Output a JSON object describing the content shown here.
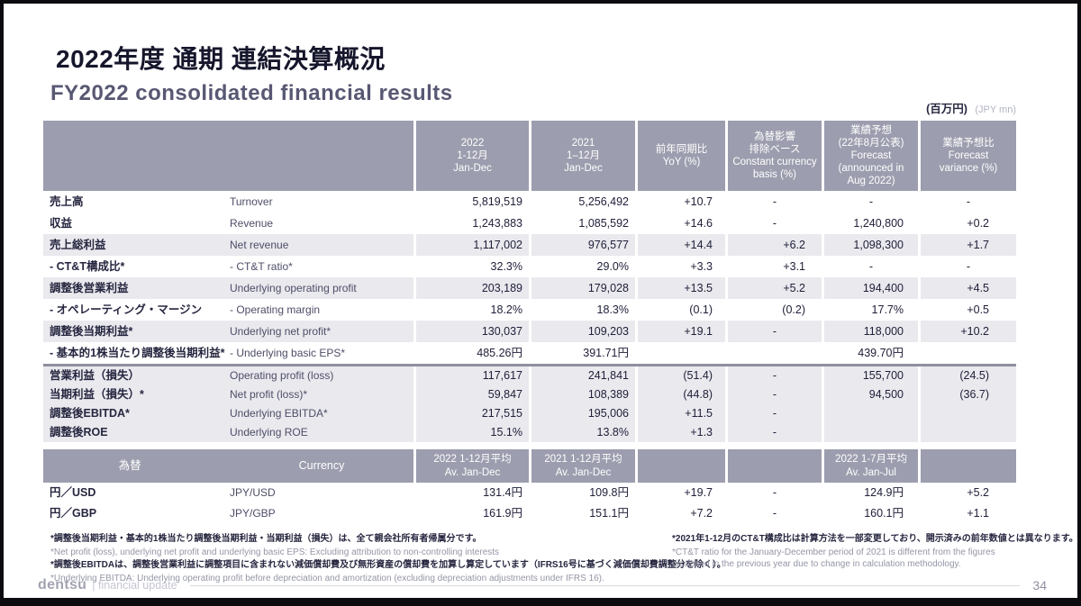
{
  "slide": {
    "title_jp": "2022年度 通期 連結決算概況",
    "title_en": "FY2022 consolidated financial results",
    "unit_jp": "(百万円)",
    "unit_en": "(JPY mn)",
    "accent_colors": {
      "header_bg": "#9c9dae",
      "shaded_row_bg": "#e9e9ee",
      "title_jp_color": "#16162c",
      "title_en_color": "#585874"
    }
  },
  "table": {
    "header": {
      "c2022": [
        "2022",
        "1-12月",
        "Jan-Dec"
      ],
      "c2021": [
        "2021",
        "1–12月",
        "Jan-Dec"
      ],
      "cyoy": [
        "前年同期比",
        "YoY (%)"
      ],
      "ccc": [
        "為替影響",
        "排除ベース",
        "Constant currency",
        "basis (%)"
      ],
      "cfc": [
        "業績予想",
        "(22年8月公表)",
        "Forecast",
        "(announced in",
        "Aug 2022)"
      ],
      "cvar": [
        "業績予想比",
        "Forecast",
        "variance (%)"
      ]
    },
    "rows": [
      {
        "jp": "売上高",
        "en": "Turnover",
        "y2022": "5,819,519",
        "y2021": "5,256,492",
        "yoy": "+10.7",
        "cc": "-",
        "fc": "-",
        "var": "-"
      },
      {
        "jp": "収益",
        "en": "Revenue",
        "y2022": "1,243,883",
        "y2021": "1,085,592",
        "yoy": "+14.6",
        "cc": "-",
        "fc": "1,240,800",
        "var": "+0.2"
      },
      {
        "jp": "売上総利益",
        "en": "Net revenue",
        "y2022": "1,117,002",
        "y2021": "976,577",
        "yoy": "+14.4",
        "cc": "+6.2",
        "fc": "1,098,300",
        "var": "+1.7"
      },
      {
        "jp": "- CT&T構成比*",
        "en": "- CT&T ratio*",
        "y2022": "32.3%",
        "y2021": "29.0%",
        "yoy": "+3.3",
        "cc": "+3.1",
        "fc": "-",
        "var": "-"
      },
      {
        "jp": "調整後営業利益",
        "en": "Underlying operating profit",
        "y2022": "203,189",
        "y2021": "179,028",
        "yoy": "+13.5",
        "cc": "+5.2",
        "fc": "194,400",
        "var": "+4.5"
      },
      {
        "jp": "- オペレーティング・マージン",
        "en": "- Operating margin",
        "y2022": "18.2%",
        "y2021": "18.3%",
        "yoy": "(0.1)",
        "cc": "(0.2)",
        "fc": "17.7%",
        "var": "+0.5"
      },
      {
        "jp": "調整後当期利益*",
        "en": "Underlying net profit*",
        "y2022": "130,037",
        "y2021": "109,203",
        "yoy": "+19.1",
        "cc": "-",
        "fc": "118,000",
        "var": "+10.2"
      },
      {
        "jp": "- 基本的1株当たり調整後当期利益*",
        "en": "- Underlying basic EPS*",
        "y2022": "485.26円",
        "y2021": "391.71円",
        "yoy": "",
        "cc": "",
        "fc": "439.70円",
        "var": ""
      },
      {
        "jp": "営業利益（損失）",
        "en": "Operating profit (loss)",
        "y2022": "117,617",
        "y2021": "241,841",
        "yoy": "(51.4)",
        "cc": "-",
        "fc": "155,700",
        "var": "(24.5)"
      },
      {
        "jp": "当期利益（損失）*",
        "en": "Net profit (loss)*",
        "y2022": "59,847",
        "y2021": "108,389",
        "yoy": "(44.8)",
        "cc": "-",
        "fc": "94,500",
        "var": "(36.7)"
      },
      {
        "jp": "調整後EBITDA*",
        "en": "Underlying EBITDA*",
        "y2022": "217,515",
        "y2021": "195,006",
        "yoy": "+11.5",
        "cc": "-",
        "fc": "",
        "var": ""
      },
      {
        "jp": "調整後ROE",
        "en": "Underlying ROE",
        "y2022": "15.1%",
        "y2021": "13.8%",
        "yoy": "+1.3",
        "cc": "-",
        "fc": "",
        "var": ""
      }
    ]
  },
  "currency": {
    "header": {
      "label_jp": "為替",
      "label_en": "Currency",
      "c2022": [
        "2022 1-12月平均",
        "Av. Jan-Dec"
      ],
      "c2021": [
        "2021 1-12月平均",
        "Av. Jan-Dec"
      ],
      "cfc": [
        "2022 1-7月平均",
        "Av. Jan-Jul"
      ]
    },
    "rows": [
      {
        "jp": "円／USD",
        "en": "JPY/USD",
        "y2022": "131.4円",
        "y2021": "109.8円",
        "yoy": "+19.7",
        "cc": "-",
        "fc": "124.9円",
        "var": "+5.2"
      },
      {
        "jp": "円／GBP",
        "en": "JPY/GBP",
        "y2022": "161.9円",
        "y2021": "151.1円",
        "yoy": "+7.2",
        "cc": "-",
        "fc": "160.1円",
        "var": "+1.1"
      }
    ]
  },
  "footnotes": {
    "left": [
      {
        "text": "*調整後当期利益・基本的1株当たり調整後当期利益・当期利益（損失）は、全て親会社所有者帰属分です。"
      },
      {
        "text": "*Net profit (loss), underlying net profit and underlying basic EPS: Excluding attribution to non-controlling interests"
      },
      {
        "text": "*調整後EBITDAは、調整後営業利益に調整項目に含まれない減価償却費及び無形資産の償却費を加算し算定しています（IFRS16号に基づく減価償却費調整分を除く）。"
      },
      {
        "text": "*Underlying EBITDA: Underlying operating profit before depreciation and amortization (excluding depreciation adjustments under IFRS 16)."
      }
    ],
    "right": [
      {
        "text": "*2021年1-12月のCT&T構成比は計算方法を一部変更しており、開示済みの前年数値とは異なります。"
      },
      {
        "text": "*CT&T ratio for the January-December period of 2021 is different from the figures disclosed in the previous year due to change in calculation methodology."
      }
    ]
  },
  "footer": {
    "logo": "dentsu",
    "tagline": "| financial update",
    "page": "34"
  }
}
